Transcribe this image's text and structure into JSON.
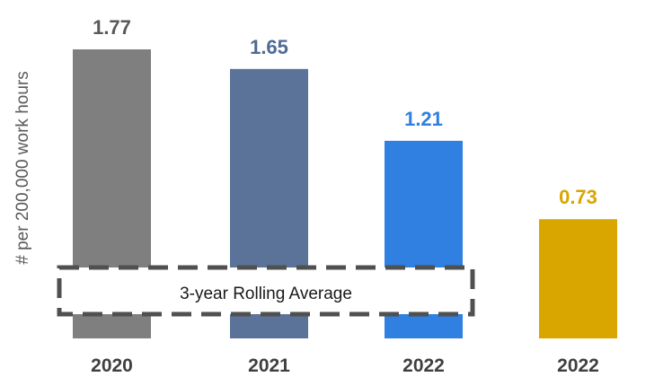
{
  "chart_data": {
    "type": "bar",
    "categories": [
      "2020",
      "2021",
      "2022",
      "2022"
    ],
    "values": [
      1.77,
      1.65,
      1.21,
      0.73
    ],
    "value_labels": [
      "1.77",
      "1.65",
      "1.21",
      "0.73"
    ],
    "bar_colors": [
      "#7f7f7f",
      "#5b7299",
      "#2f80e0",
      "#d9a600"
    ],
    "label_colors": [
      "#595959",
      "#4f6a96",
      "#2f80e0",
      "#d9a600"
    ],
    "ylabel": "# per 200,000 work hours",
    "annotation": "3-year Rolling Average",
    "ylim": [
      0,
      1.85
    ],
    "grid": false,
    "legend": "none"
  }
}
